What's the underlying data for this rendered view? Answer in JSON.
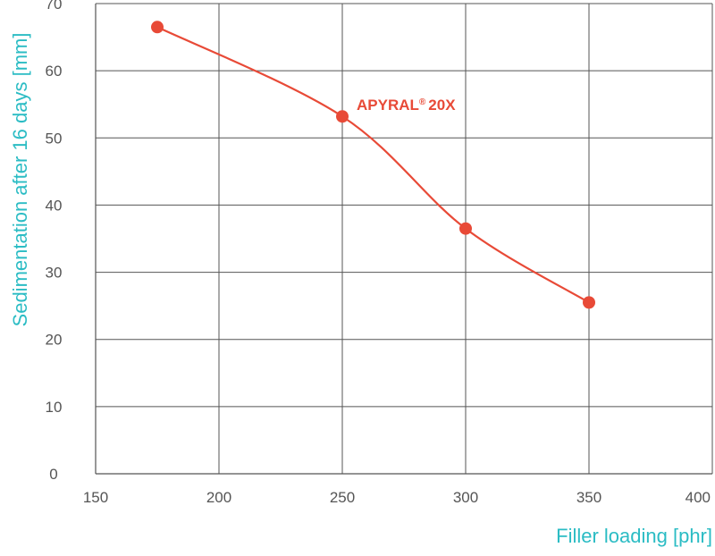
{
  "chart_data": {
    "type": "line",
    "xlabel": "Filler loading [phr]",
    "ylabel": "Sedimentation after 16 days [mm]",
    "xlim": [
      150,
      400
    ],
    "ylim": [
      0,
      70
    ],
    "x_ticks": [
      "150",
      "200",
      "250",
      "300",
      "350",
      "400"
    ],
    "y_ticks": [
      "0",
      "10",
      "20",
      "30",
      "40",
      "50",
      "60",
      "70"
    ],
    "grid": true,
    "series": [
      {
        "name": "APYRAL 20X",
        "label_main": "APYRAL",
        "label_reg": "®",
        "label_suffix": "20X",
        "color": "#e84a37",
        "x": [
          175,
          250,
          300,
          350
        ],
        "y": [
          66.5,
          53.2,
          36.5,
          25.5
        ]
      }
    ],
    "colors": {
      "axis_title": "#2bbcc4",
      "grid": "#555555",
      "tick_text": "#555555",
      "series": "#e84a37"
    }
  }
}
